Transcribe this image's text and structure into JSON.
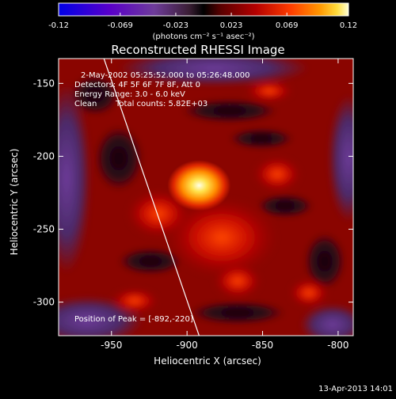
{
  "colorbar": {
    "tick_labels": [
      "-0.12",
      "-0.069",
      "-0.023",
      "0.023",
      "0.069",
      "0.12"
    ],
    "ticks": [
      -0.12,
      -0.069,
      -0.023,
      0.023,
      0.069,
      0.12
    ],
    "range": [
      -0.12,
      0.12
    ],
    "unit_label": "(photons cm⁻² s⁻¹ asec⁻²)"
  },
  "image": {
    "title": "Reconstructed RHESSI Image",
    "time_range": "2-May-2002 05:25:52.000 to 05:26:48.000",
    "detectors": "Detectors: 4F 5F 6F 7F 8F, Att 0",
    "energy_range": "Energy Range: 3.0 - 6.0 keV",
    "clean": "Clean",
    "total_counts": "Total counts: 5.82E+03",
    "peak": "Position of Peak = [-892,-220]",
    "peak_position": [
      -892,
      -220
    ]
  },
  "axes": {
    "xlabel": "Heliocentric X (arcsec)",
    "ylabel": "Heliocentric Y (arcsec)",
    "x_ticks": [
      -950,
      -900,
      -850,
      -800
    ],
    "x_tick_labels": [
      "-950",
      "-900",
      "-850",
      "-800"
    ],
    "y_ticks": [
      -150,
      -200,
      -250,
      -300
    ],
    "y_tick_labels": [
      "-150",
      "-200",
      "-250",
      "-300"
    ],
    "xlim": [
      -985,
      -790
    ],
    "ylim": [
      -323,
      -133
    ]
  },
  "limb_line": {
    "from": [
      -955,
      -133
    ],
    "to": [
      -892,
      -323
    ]
  },
  "footer": {
    "timestamp": "13-Apr-2013 14:01"
  },
  "colors": {
    "background": "#000000",
    "text": "#ffffff",
    "colormap": [
      "#0000e6",
      "#5a00c8",
      "#6e3c9a",
      "#3b1e35",
      "#000000",
      "#5a0000",
      "#b40000",
      "#ff3c00",
      "#ff9600",
      "#ffdc3c",
      "#ffffd2"
    ]
  }
}
